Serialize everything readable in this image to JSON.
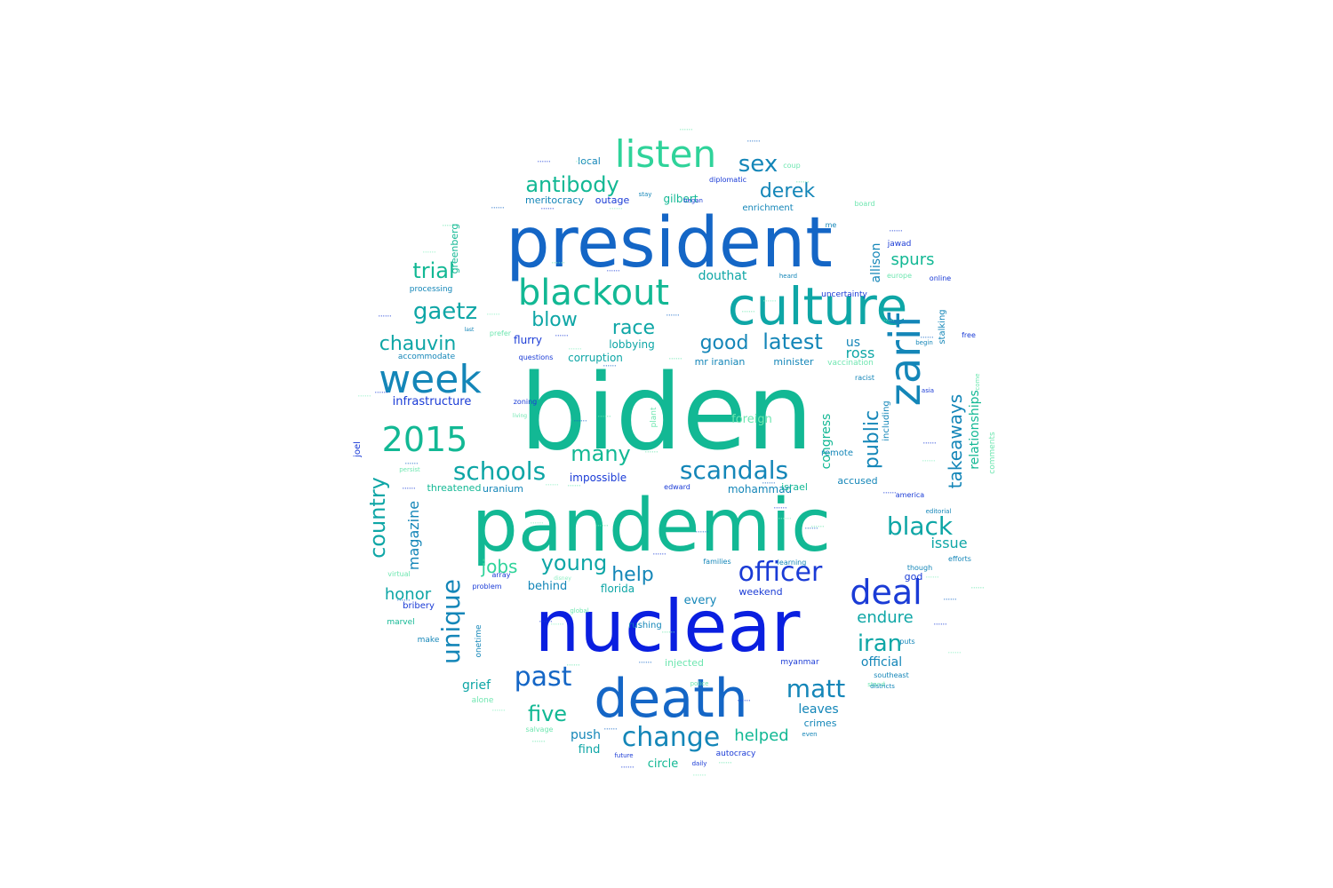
{
  "palette": {
    "blue": "#0a1fe0",
    "deep_blue": "#1a3bd6",
    "mid_blue": "#1466c6",
    "teal_blue": "#1486b8",
    "teal": "#0ea6a6",
    "sea_green": "#12b894",
    "mint": "#2fd39a",
    "light_mint": "#6ee6b0",
    "pale_mint": "#8ff0c4"
  },
  "words": [
    {
      "text": "biden",
      "color": "sea_green"
    },
    {
      "text": "president",
      "color": "mid_blue"
    },
    {
      "text": "pandemic",
      "color": "sea_green"
    },
    {
      "text": "nuclear",
      "color": "blue"
    },
    {
      "text": "death",
      "color": "mid_blue"
    },
    {
      "text": "culture",
      "color": "teal"
    },
    {
      "text": "zarif",
      "color": "teal_blue"
    },
    {
      "text": "week",
      "color": "teal_blue"
    },
    {
      "text": "blackout",
      "color": "sea_green"
    },
    {
      "text": "listen",
      "color": "mint"
    },
    {
      "text": "2015",
      "color": "sea_green"
    },
    {
      "text": "deal",
      "color": "deep_blue"
    },
    {
      "text": "scandals",
      "color": "teal_blue"
    },
    {
      "text": "schools",
      "color": "teal"
    },
    {
      "text": "officer",
      "color": "deep_blue"
    },
    {
      "text": "change",
      "color": "teal_blue"
    },
    {
      "text": "matt",
      "color": "teal_blue"
    },
    {
      "text": "past",
      "color": "mid_blue"
    },
    {
      "text": "unique",
      "color": "teal_blue"
    },
    {
      "text": "black",
      "color": "teal"
    },
    {
      "text": "gaetz",
      "color": "teal"
    },
    {
      "text": "antibody",
      "color": "sea_green"
    },
    {
      "text": "country",
      "color": "teal"
    },
    {
      "text": "public",
      "color": "teal_blue"
    },
    {
      "text": "takeaways",
      "color": "teal_blue"
    },
    {
      "text": "iran",
      "color": "teal"
    },
    {
      "text": "young",
      "color": "teal"
    },
    {
      "text": "many",
      "color": "sea_green"
    },
    {
      "text": "five",
      "color": "sea_green"
    },
    {
      "text": "derek",
      "color": "teal_blue"
    },
    {
      "text": "sex",
      "color": "teal_blue"
    },
    {
      "text": "latest",
      "color": "teal_blue"
    },
    {
      "text": "chauvin",
      "color": "teal"
    },
    {
      "text": "trial",
      "color": "sea_green"
    },
    {
      "text": "good",
      "color": "teal_blue"
    },
    {
      "text": "race",
      "color": "teal"
    },
    {
      "text": "blow",
      "color": "teal"
    },
    {
      "text": "jobs",
      "color": "mint"
    },
    {
      "text": "help",
      "color": "teal_blue"
    },
    {
      "text": "helped",
      "color": "sea_green"
    },
    {
      "text": "endure",
      "color": "teal"
    },
    {
      "text": "honor",
      "color": "teal"
    },
    {
      "text": "relationships",
      "color": "sea_green"
    },
    {
      "text": "magazine",
      "color": "teal_blue"
    },
    {
      "text": "congress",
      "color": "sea_green"
    },
    {
      "text": "allison",
      "color": "teal_blue"
    },
    {
      "text": "spurs",
      "color": "sea_green"
    },
    {
      "text": "ross",
      "color": "teal"
    },
    {
      "text": "us",
      "color": "teal_blue"
    },
    {
      "text": "douthat",
      "color": "teal"
    },
    {
      "text": "issue",
      "color": "teal"
    },
    {
      "text": "leaves",
      "color": "teal_blue"
    },
    {
      "text": "official",
      "color": "teal_blue"
    },
    {
      "text": "grief",
      "color": "teal"
    },
    {
      "text": "push",
      "color": "teal_blue"
    },
    {
      "text": "find",
      "color": "teal"
    },
    {
      "text": "circle",
      "color": "sea_green"
    },
    {
      "text": "behind",
      "color": "teal_blue"
    },
    {
      "text": "florida",
      "color": "teal"
    },
    {
      "text": "every",
      "color": "teal_blue"
    },
    {
      "text": "weekend",
      "color": "deep_blue"
    },
    {
      "text": "crimes",
      "color": "teal_blue"
    },
    {
      "text": "impossible",
      "color": "deep_blue"
    },
    {
      "text": "threatened",
      "color": "sea_green"
    },
    {
      "text": "uranium",
      "color": "teal_blue"
    },
    {
      "text": "mohammad",
      "color": "teal_blue"
    },
    {
      "text": "accused",
      "color": "teal_blue"
    },
    {
      "text": "infrastructure",
      "color": "deep_blue"
    },
    {
      "text": "corruption",
      "color": "teal"
    },
    {
      "text": "lobbying",
      "color": "teal"
    },
    {
      "text": "flurry",
      "color": "deep_blue"
    },
    {
      "text": "mr iranian",
      "color": "teal_blue"
    },
    {
      "text": "minister",
      "color": "teal_blue"
    },
    {
      "text": "meritocracy",
      "color": "teal_blue"
    },
    {
      "text": "outage",
      "color": "deep_blue"
    },
    {
      "text": "gilbert",
      "color": "sea_green"
    },
    {
      "text": "local",
      "color": "teal_blue"
    },
    {
      "text": "enrichment",
      "color": "teal_blue"
    },
    {
      "text": "foreign",
      "color": "light_mint"
    },
    {
      "text": "including",
      "color": "teal_blue"
    },
    {
      "text": "stalking",
      "color": "teal_blue"
    },
    {
      "text": "comments",
      "color": "light_mint"
    },
    {
      "text": "greenberg",
      "color": "sea_green"
    },
    {
      "text": "bribery",
      "color": "deep_blue"
    },
    {
      "text": "marvel",
      "color": "sea_green"
    },
    {
      "text": "onetime",
      "color": "teal_blue"
    },
    {
      "text": "injected",
      "color": "light_mint"
    },
    {
      "text": "rushing",
      "color": "teal_blue"
    },
    {
      "text": "israel",
      "color": "sea_green"
    },
    {
      "text": "remote",
      "color": "teal_blue"
    },
    {
      "text": "joel",
      "color": "deep_blue"
    },
    {
      "text": "god",
      "color": "deep_blue"
    },
    {
      "text": "autocracy",
      "color": "deep_blue"
    },
    {
      "text": "myanmar",
      "color": "deep_blue"
    },
    {
      "text": "accommodate",
      "color": "teal_blue"
    },
    {
      "text": "processing",
      "color": "teal_blue"
    },
    {
      "text": "uncertainty",
      "color": "deep_blue"
    },
    {
      "text": "vaccination",
      "color": "light_mint"
    },
    {
      "text": "diplomatic",
      "color": "deep_blue"
    },
    {
      "text": "jawad",
      "color": "deep_blue"
    },
    {
      "text": "europe",
      "color": "light_mint"
    },
    {
      "text": "online",
      "color": "deep_blue"
    },
    {
      "text": "make",
      "color": "teal_blue"
    },
    {
      "text": "alone",
      "color": "light_mint"
    },
    {
      "text": "questions",
      "color": "deep_blue"
    },
    {
      "text": "zoning",
      "color": "deep_blue"
    },
    {
      "text": "plant",
      "color": "light_mint"
    },
    {
      "text": "prefer",
      "color": "light_mint"
    },
    {
      "text": "racist",
      "color": "teal_blue"
    },
    {
      "text": "virtual",
      "color": "light_mint"
    },
    {
      "text": "problem",
      "color": "deep_blue"
    },
    {
      "text": "array",
      "color": "deep_blue"
    },
    {
      "text": "families",
      "color": "teal_blue"
    },
    {
      "text": "learning",
      "color": "teal_blue"
    },
    {
      "text": "america",
      "color": "deep_blue"
    },
    {
      "text": "editorial",
      "color": "teal_blue"
    },
    {
      "text": "efforts",
      "color": "teal_blue"
    },
    {
      "text": "though",
      "color": "teal_blue"
    },
    {
      "text": "stand",
      "color": "light_mint"
    },
    {
      "text": "puts",
      "color": "teal_blue"
    },
    {
      "text": "southeast",
      "color": "teal_blue"
    },
    {
      "text": "districts",
      "color": "teal_blue"
    },
    {
      "text": "daily",
      "color": "deep_blue"
    },
    {
      "text": "future",
      "color": "deep_blue"
    },
    {
      "text": "even",
      "color": "teal_blue"
    },
    {
      "text": "salvage",
      "color": "light_mint"
    },
    {
      "text": "edward",
      "color": "deep_blue"
    },
    {
      "text": "began",
      "color": "deep_blue"
    },
    {
      "text": "board",
      "color": "light_mint"
    },
    {
      "text": "stay",
      "color": "teal_blue"
    },
    {
      "text": "coup",
      "color": "light_mint"
    },
    {
      "text": "heard",
      "color": "teal_blue"
    },
    {
      "text": "free",
      "color": "deep_blue"
    },
    {
      "text": "come",
      "color": "light_mint"
    },
    {
      "text": "asia",
      "color": "deep_blue"
    },
    {
      "text": "persist",
      "color": "light_mint"
    },
    {
      "text": "last",
      "color": "teal_blue"
    },
    {
      "text": "me",
      "color": "teal_blue"
    },
    {
      "text": "disney",
      "color": "pale_mint"
    },
    {
      "text": "living",
      "color": "light_mint"
    },
    {
      "text": "police",
      "color": "light_mint"
    },
    {
      "text": "global",
      "color": "light_mint"
    },
    {
      "text": "begin",
      "color": "teal_blue"
    }
  ]
}
